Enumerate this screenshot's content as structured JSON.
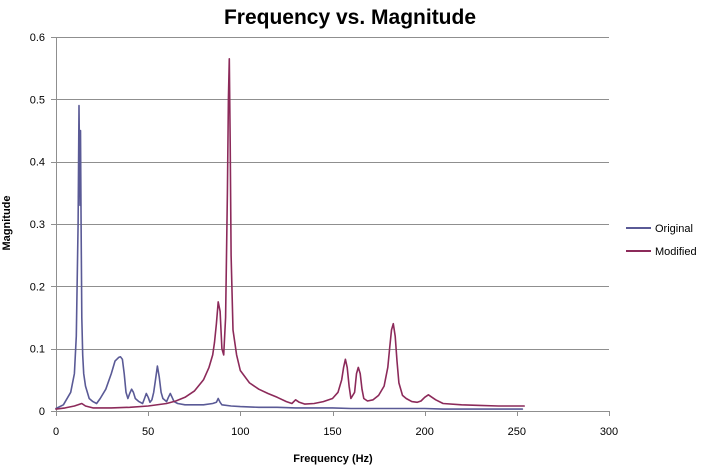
{
  "chart_data": {
    "type": "line",
    "title": "Frequency vs. Magnitude",
    "xlabel": "Frequency (Hz)",
    "ylabel": "Magnitude",
    "xlim": [
      0,
      300
    ],
    "ylim": [
      0,
      0.6
    ],
    "xticks": [
      0,
      50,
      100,
      150,
      200,
      250,
      300
    ],
    "yticks": [
      0,
      0.1,
      0.2,
      0.3,
      0.4,
      0.5,
      0.6
    ],
    "xtick_labels": [
      "0",
      "50",
      "100",
      "150",
      "200",
      "250",
      "300"
    ],
    "ytick_labels": [
      "0",
      "0.1",
      "0.2",
      "0.3",
      "0.4",
      "0.5",
      "0.6"
    ],
    "grid": true,
    "legend_position": "right",
    "series": [
      {
        "name": "Original",
        "color": "#5a5a96",
        "x": [
          0,
          4,
          8,
          10,
          11,
          12,
          12.5,
          13,
          13.3,
          13.6,
          14,
          14.5,
          15,
          16,
          18,
          20,
          22,
          24,
          27,
          30,
          32,
          34,
          35,
          36,
          37,
          38,
          39,
          40,
          41,
          42,
          43,
          45,
          47,
          48,
          49,
          50,
          51,
          52,
          53,
          54,
          55,
          56,
          57,
          58,
          60,
          61,
          62,
          63,
          64,
          66,
          70,
          75,
          80,
          85,
          87,
          88,
          89,
          90,
          95,
          100,
          110,
          120,
          130,
          140,
          150,
          160,
          170,
          180,
          190,
          200,
          210,
          220,
          230,
          240,
          250,
          253
        ],
        "y": [
          0.004,
          0.01,
          0.03,
          0.06,
          0.12,
          0.3,
          0.49,
          0.33,
          0.45,
          0.3,
          0.15,
          0.09,
          0.06,
          0.04,
          0.02,
          0.015,
          0.012,
          0.02,
          0.035,
          0.06,
          0.08,
          0.086,
          0.087,
          0.083,
          0.06,
          0.03,
          0.02,
          0.028,
          0.035,
          0.03,
          0.02,
          0.015,
          0.012,
          0.02,
          0.028,
          0.022,
          0.014,
          0.018,
          0.03,
          0.05,
          0.072,
          0.055,
          0.03,
          0.02,
          0.015,
          0.022,
          0.028,
          0.022,
          0.015,
          0.012,
          0.01,
          0.01,
          0.01,
          0.012,
          0.014,
          0.02,
          0.014,
          0.01,
          0.008,
          0.007,
          0.006,
          0.006,
          0.005,
          0.005,
          0.005,
          0.004,
          0.004,
          0.004,
          0.004,
          0.004,
          0.003,
          0.003,
          0.003,
          0.003,
          0.003,
          0.003
        ]
      },
      {
        "name": "Modified",
        "color": "#8c2a5a",
        "x": [
          0,
          5,
          10,
          12,
          14,
          16,
          20,
          30,
          40,
          50,
          60,
          65,
          70,
          75,
          80,
          83,
          85,
          86,
          87,
          88,
          89,
          90,
          91,
          92,
          93,
          93.5,
          94,
          94.5,
          95,
          96,
          98,
          100,
          105,
          110,
          115,
          120,
          125,
          128,
          130,
          132,
          135,
          140,
          145,
          150,
          153,
          155,
          156,
          157,
          158,
          159,
          160,
          162,
          163,
          164,
          165,
          166,
          167,
          169,
          172,
          175,
          178,
          180,
          181,
          182,
          183,
          184,
          185,
          186,
          188,
          190,
          193,
          196,
          198,
          200,
          202,
          204,
          206,
          210,
          220,
          230,
          240,
          250,
          254
        ],
        "y": [
          0.003,
          0.005,
          0.008,
          0.01,
          0.012,
          0.008,
          0.005,
          0.005,
          0.006,
          0.008,
          0.012,
          0.016,
          0.022,
          0.032,
          0.05,
          0.07,
          0.09,
          0.11,
          0.14,
          0.175,
          0.16,
          0.1,
          0.09,
          0.15,
          0.35,
          0.5,
          0.565,
          0.43,
          0.25,
          0.13,
          0.09,
          0.065,
          0.045,
          0.035,
          0.028,
          0.022,
          0.015,
          0.012,
          0.018,
          0.014,
          0.011,
          0.012,
          0.015,
          0.02,
          0.03,
          0.05,
          0.07,
          0.083,
          0.07,
          0.04,
          0.02,
          0.03,
          0.06,
          0.07,
          0.06,
          0.035,
          0.02,
          0.016,
          0.018,
          0.025,
          0.04,
          0.07,
          0.1,
          0.13,
          0.14,
          0.12,
          0.08,
          0.045,
          0.025,
          0.02,
          0.015,
          0.014,
          0.016,
          0.022,
          0.026,
          0.022,
          0.018,
          0.012,
          0.01,
          0.009,
          0.008,
          0.008,
          0.008
        ]
      }
    ]
  }
}
